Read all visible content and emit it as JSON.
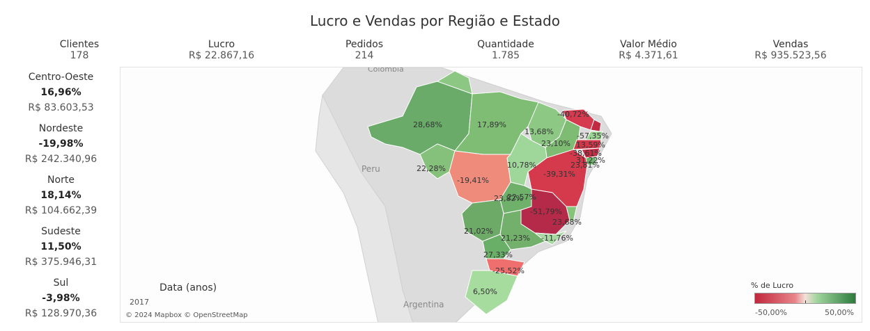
{
  "title": "Lucro e Vendas por Região e Estado",
  "kpis": [
    {
      "label": "Clientes",
      "value": "178"
    },
    {
      "label": "Lucro",
      "value": "R$ 22.867,16"
    },
    {
      "label": "Pedidos",
      "value": "214"
    },
    {
      "label": "Quantidade",
      "value": "1.785"
    },
    {
      "label": "Valor Médio",
      "value": "R$ 4.371,61"
    },
    {
      "label": "Vendas",
      "value": "R$ 935.523,56"
    }
  ],
  "regions": [
    {
      "name": "Centro-Oeste",
      "pct": "16,96%",
      "sales": "R$ 83.603,53"
    },
    {
      "name": "Nordeste",
      "pct": "-19,98%",
      "sales": "R$ 242.340,96"
    },
    {
      "name": "Norte",
      "pct": "18,14%",
      "sales": "R$ 104.662,39"
    },
    {
      "name": "Sudeste",
      "pct": "11,50%",
      "sales": "R$ 375.946,31"
    },
    {
      "name": "Sul",
      "pct": "-3,98%",
      "sales": "R$ 128.970,36"
    }
  ],
  "map": {
    "country_labels": [
      "Colombia",
      "Peru",
      "Argentina"
    ],
    "state_labels": [
      "28,68%",
      "17,89%",
      "13,68%",
      "-40,72%",
      "-57,35%",
      "23,10%",
      "13,59%",
      "-38,61%",
      "31,22%",
      "23,81%",
      "22,28%",
      "-19,41%",
      "10,78%",
      "-39,31%",
      "23,82%",
      "22,57%",
      "-51,79%",
      "23,68%",
      "21,02%",
      "21,23%",
      "-11,76%",
      "27,33%",
      "-25,52%",
      "6,50%"
    ],
    "colors": {
      "negative": "#c0283d",
      "positive": "#2c7b3c",
      "mid": "#f3e0d8"
    }
  },
  "legend": {
    "title": "% de Lucro",
    "min": "-50,00%",
    "max": "50,00%"
  },
  "filter": {
    "label": "Data (anos)",
    "year": "2017"
  },
  "attribution": "© 2024 Mapbox © OpenStreetMap"
}
